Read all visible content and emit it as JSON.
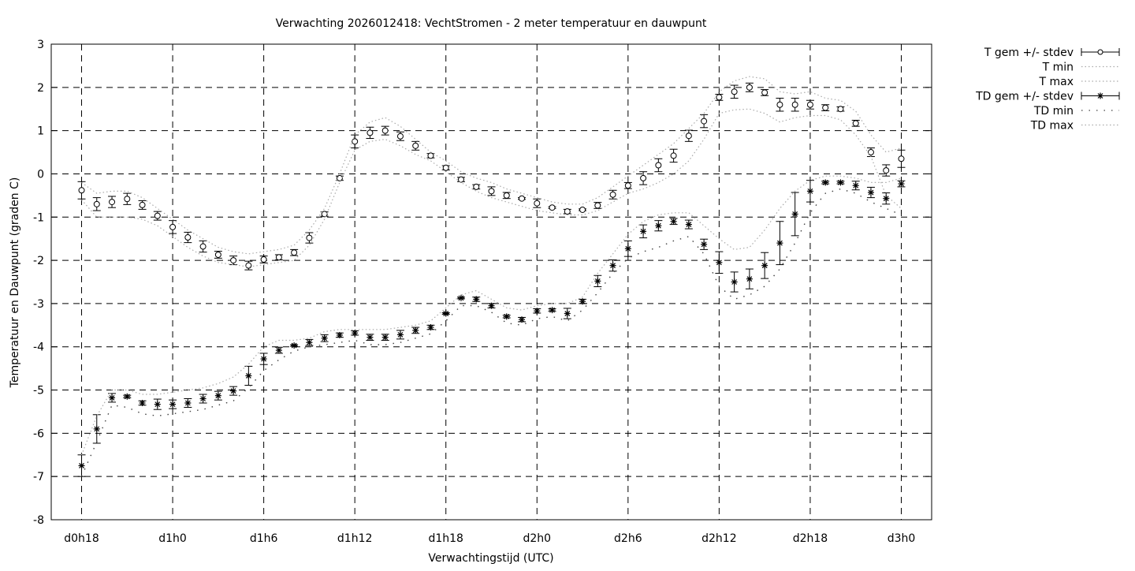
{
  "chart_data": {
    "type": "line",
    "title": "Verwachting 2026012418: VechtStromen - 2 meter temperatuur en dauwpunt",
    "xlabel": "Verwachtingstijd (UTC)",
    "ylabel": "Temperatuur en Dauwpunt (graden C)",
    "xlim_hours": [
      16,
      74
    ],
    "ylim": [
      -8,
      3
    ],
    "grid": true,
    "legend_position": "outside-right-top",
    "x_ticks": [
      {
        "hour": 18,
        "label": "d0h18"
      },
      {
        "hour": 24,
        "label": "d1h0"
      },
      {
        "hour": 30,
        "label": "d1h6"
      },
      {
        "hour": 36,
        "label": "d1h12"
      },
      {
        "hour": 42,
        "label": "d1h18"
      },
      {
        "hour": 48,
        "label": "d2h0"
      },
      {
        "hour": 54,
        "label": "d2h6"
      },
      {
        "hour": 60,
        "label": "d2h12"
      },
      {
        "hour": 66,
        "label": "d2h18"
      },
      {
        "hour": 72,
        "label": "d3h0"
      }
    ],
    "y_ticks": [
      "-8",
      "-7",
      "-6",
      "-5",
      "-4",
      "-3",
      "-2",
      "-1",
      "0",
      "1",
      "2",
      "3"
    ],
    "x_hours_start": 18,
    "x_hours_step": 1,
    "series": [
      {
        "name": "T gem +/- stdev",
        "style": "errorbars-circle",
        "values": [
          -0.38,
          -0.7,
          -0.65,
          -0.58,
          -0.72,
          -0.97,
          -1.23,
          -1.47,
          -1.68,
          -1.87,
          -2.0,
          -2.12,
          -1.98,
          -1.93,
          -1.82,
          -1.48,
          -0.93,
          -0.1,
          0.75,
          0.95,
          1.0,
          0.87,
          0.65,
          0.42,
          0.14,
          -0.13,
          -0.3,
          -0.4,
          -0.5,
          -0.57,
          -0.68,
          -0.78,
          -0.87,
          -0.83,
          -0.73,
          -0.48,
          -0.27,
          -0.1,
          0.2,
          0.42,
          0.88,
          1.22,
          1.77,
          1.9,
          2.0,
          1.88,
          1.6,
          1.6,
          1.6,
          1.53,
          1.5,
          1.17,
          0.5,
          0.08,
          0.35
        ],
        "stdev": [
          0.2,
          0.15,
          0.13,
          0.13,
          0.1,
          0.1,
          0.15,
          0.12,
          0.13,
          0.08,
          0.1,
          0.1,
          0.08,
          0.06,
          0.07,
          0.12,
          0.05,
          0.05,
          0.15,
          0.13,
          0.1,
          0.1,
          0.1,
          0.05,
          0.05,
          0.05,
          0.05,
          0.1,
          0.07,
          0.02,
          0.1,
          0.02,
          0.05,
          0.02,
          0.07,
          0.1,
          0.07,
          0.15,
          0.15,
          0.15,
          0.13,
          0.15,
          0.07,
          0.15,
          0.1,
          0.07,
          0.15,
          0.15,
          0.1,
          0.07,
          0.05,
          0.07,
          0.1,
          0.13,
          0.2
        ]
      },
      {
        "name": "T min",
        "style": "dotted",
        "values": [
          -0.6,
          -1.0,
          -1.0,
          -1.0,
          -1.05,
          -1.2,
          -1.45,
          -1.7,
          -1.9,
          -2.05,
          -2.1,
          -2.15,
          -2.1,
          -2.05,
          -2.0,
          -1.65,
          -1.05,
          -0.2,
          0.55,
          0.75,
          0.8,
          0.65,
          0.45,
          0.3,
          0.05,
          -0.2,
          -0.4,
          -0.55,
          -0.65,
          -0.75,
          -0.85,
          -0.9,
          -0.95,
          -0.95,
          -0.85,
          -0.65,
          -0.45,
          -0.35,
          -0.2,
          0.0,
          0.3,
          0.8,
          1.4,
          1.48,
          1.5,
          1.4,
          1.2,
          1.3,
          1.35,
          1.35,
          1.25,
          0.9,
          0.4,
          -0.5,
          -0.8
        ]
      },
      {
        "name": "T max",
        "style": "dotted",
        "values": [
          -0.2,
          -0.45,
          -0.4,
          -0.4,
          -0.55,
          -0.8,
          -1.05,
          -1.3,
          -1.5,
          -1.7,
          -1.8,
          -1.85,
          -1.8,
          -1.75,
          -1.65,
          -1.3,
          -0.8,
          0.0,
          0.9,
          1.2,
          1.3,
          1.1,
          0.8,
          0.5,
          0.3,
          0.05,
          -0.1,
          -0.2,
          -0.35,
          -0.45,
          -0.55,
          -0.65,
          -0.7,
          -0.7,
          -0.55,
          -0.3,
          -0.05,
          0.2,
          0.45,
          0.7,
          1.05,
          1.4,
          1.9,
          2.15,
          2.25,
          2.2,
          1.9,
          1.85,
          1.9,
          1.75,
          1.7,
          1.45,
          0.9,
          0.5,
          0.6
        ]
      },
      {
        "name": "TD gem +/- stdev",
        "style": "errorbars-star",
        "values": [
          -6.75,
          -5.9,
          -5.18,
          -5.15,
          -5.3,
          -5.33,
          -5.33,
          -5.3,
          -5.2,
          -5.13,
          -5.02,
          -4.67,
          -4.28,
          -4.08,
          -3.97,
          -3.9,
          -3.8,
          -3.73,
          -3.68,
          -3.78,
          -3.78,
          -3.72,
          -3.62,
          -3.55,
          -3.23,
          -2.87,
          -2.9,
          -3.05,
          -3.3,
          -3.37,
          -3.17,
          -3.15,
          -3.23,
          -2.95,
          -2.48,
          -2.12,
          -1.73,
          -1.33,
          -1.2,
          -1.1,
          -1.17,
          -1.63,
          -2.05,
          -2.5,
          -2.43,
          -2.12,
          -1.6,
          -0.93,
          -0.4,
          -0.2,
          -0.2,
          -0.27,
          -0.43,
          -0.57,
          -0.23
        ],
        "stdev": [
          0.25,
          0.33,
          0.1,
          0.03,
          0.05,
          0.12,
          0.1,
          0.1,
          0.1,
          0.1,
          0.1,
          0.22,
          0.13,
          0.07,
          0.02,
          0.07,
          0.08,
          0.05,
          0.05,
          0.07,
          0.07,
          0.1,
          0.07,
          0.05,
          0.02,
          0.02,
          0.05,
          0.05,
          0.03,
          0.05,
          0.05,
          0.03,
          0.12,
          0.05,
          0.13,
          0.13,
          0.18,
          0.15,
          0.12,
          0.07,
          0.1,
          0.12,
          0.25,
          0.23,
          0.23,
          0.3,
          0.5,
          0.5,
          0.25,
          0.03,
          0.03,
          0.1,
          0.12,
          0.13,
          0.07
        ]
      },
      {
        "name": "TD min",
        "style": "sparse-dotted",
        "values": [
          -7.0,
          -6.2,
          -5.35,
          -5.4,
          -5.55,
          -5.6,
          -5.55,
          -5.5,
          -5.45,
          -5.35,
          -5.25,
          -4.95,
          -4.55,
          -4.3,
          -4.1,
          -4.0,
          -3.95,
          -3.9,
          -3.85,
          -3.95,
          -3.95,
          -3.9,
          -3.8,
          -3.7,
          -3.4,
          -3.05,
          -3.05,
          -3.2,
          -3.45,
          -3.5,
          -3.35,
          -3.3,
          -3.4,
          -3.15,
          -2.75,
          -2.3,
          -1.95,
          -1.8,
          -1.7,
          -1.55,
          -1.45,
          -1.85,
          -2.6,
          -2.9,
          -2.8,
          -2.6,
          -2.2,
          -1.6,
          -0.9,
          -0.45,
          -0.35,
          -0.45,
          -0.65,
          -0.8,
          -0.95
        ]
      },
      {
        "name": "TD max",
        "style": "dotted",
        "values": [
          -6.5,
          -5.6,
          -5.0,
          -5.0,
          -5.1,
          -5.1,
          -5.05,
          -5.0,
          -4.95,
          -4.85,
          -4.7,
          -4.4,
          -4.0,
          -3.85,
          -3.85,
          -3.8,
          -3.65,
          -3.6,
          -3.6,
          -3.6,
          -3.6,
          -3.55,
          -3.5,
          -3.4,
          -3.1,
          -2.8,
          -2.7,
          -2.9,
          -3.1,
          -3.15,
          -3.05,
          -3.0,
          -3.0,
          -2.85,
          -2.3,
          -1.85,
          -1.4,
          -1.1,
          -0.95,
          -0.9,
          -0.9,
          -1.2,
          -1.5,
          -1.75,
          -1.7,
          -1.3,
          -0.8,
          -0.4,
          -0.15,
          -0.05,
          -0.05,
          -0.1,
          -0.2,
          -0.2,
          -0.1
        ]
      }
    ]
  }
}
